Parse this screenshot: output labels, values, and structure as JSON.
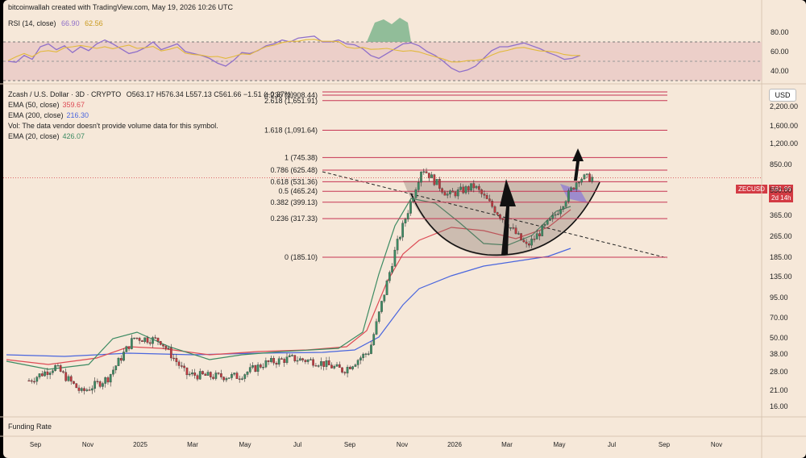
{
  "header": {
    "attribution": "bitcoinwallah created with TradingView.com, May 19, 2026 10:26 UTC"
  },
  "rsi": {
    "label": "RSI (14, close)",
    "value": "66.90",
    "ma_value": "62.56",
    "ticks": [
      "80.00",
      "60.00",
      "40.00"
    ],
    "color": "#8f6fc9",
    "ma_color": "#e2b93b"
  },
  "legend": {
    "symbol": "Zcash / U.S. Dollar · 3D · CRYPTO",
    "ohlc": "O563.17  H576.34  L557.13  C561.66  −1.51 (−0.27%)",
    "ema50_label": "EMA (50, close)",
    "ema50_value": "359.67",
    "ema200_label": "EMA (200, close)",
    "ema200_value": "216.30",
    "vol_note": "Vol: The data vendor doesn't provide volume data for this symbol.",
    "ema20_label": "EMA (20, close)",
    "ema20_value": "426.07"
  },
  "price_axis": {
    "currency": "USD",
    "ticks": [
      "2,200.00",
      "1,600.00",
      "1,200.00",
      "850.00",
      "550.00",
      "365.00",
      "265.00",
      "185.00",
      "135.00",
      "95.00",
      "70.00",
      "50.00",
      "38.00",
      "28.00",
      "21.00",
      "16.00"
    ],
    "last_label": "ZECUSD",
    "last_price": "561.66",
    "countdown": "2d 14h"
  },
  "x_axis": {
    "ticks": [
      "Sep",
      "Nov",
      "2025",
      "Mar",
      "May",
      "Jul",
      "Sep",
      "Nov",
      "2026",
      "Mar",
      "May",
      "Jul",
      "Sep",
      "Nov"
    ]
  },
  "fib": [
    {
      "label": "4.236 (2,908.44)",
      "price": 2908.44
    },
    {
      "label": "2.618 (1,651.91)",
      "price": 1651.91
    },
    {
      "label": "1.618 (1,091.64)",
      "price": 1091.64
    },
    {
      "label": "1 (745.38)",
      "price": 745.38
    },
    {
      "label": "0.786 (625.48)",
      "price": 625.48
    },
    {
      "label": "0.618 (531.36)",
      "price": 531.36
    },
    {
      "label": "0.5 (465.24)",
      "price": 465.24
    },
    {
      "label": "0.382 (399.13)",
      "price": 399.13
    },
    {
      "label": "0.236 (317.33)",
      "price": 317.33
    },
    {
      "label": "0 (185.10)",
      "price": 185.1
    }
  ],
  "funding": {
    "label": "Funding Rate"
  },
  "colors": {
    "up": "#3d8b63",
    "down": "#c0393f",
    "ema20": "#3d8b63",
    "ema50": "#dd4b55",
    "ema200": "#4a66de",
    "fib": "#c63553"
  },
  "chart_data": {
    "type": "candlestick",
    "scale": "log",
    "ylim": [
      13,
      3300
    ],
    "series": [
      {
        "name": "EMA (20, close)",
        "last": 426.07
      },
      {
        "name": "EMA (50, close)",
        "last": 359.67
      },
      {
        "name": "EMA (200, close)",
        "last": 216.3
      }
    ],
    "close_path": [
      [
        "2024-08",
        33
      ],
      [
        "2024-09",
        40
      ],
      [
        "2024-10",
        28
      ],
      [
        "2024-11",
        34
      ],
      [
        "2024-12",
        60
      ],
      [
        "2025-01",
        58
      ],
      [
        "2025-02",
        36
      ],
      [
        "2025-03",
        35
      ],
      [
        "2025-04",
        35
      ],
      [
        "2025-05",
        42
      ],
      [
        "2025-06",
        45
      ],
      [
        "2025-07",
        43
      ],
      [
        "2025-08",
        38
      ],
      [
        "2025-09",
        50
      ],
      [
        "2025-10",
        210
      ],
      [
        "2025-11",
        650
      ],
      [
        "2025-12",
        440
      ],
      [
        "2026-01",
        500
      ],
      [
        "2026-02",
        330
      ],
      [
        "2026-03",
        215
      ],
      [
        "2026-04",
        320
      ],
      [
        "2026-05",
        561.66
      ]
    ]
  }
}
